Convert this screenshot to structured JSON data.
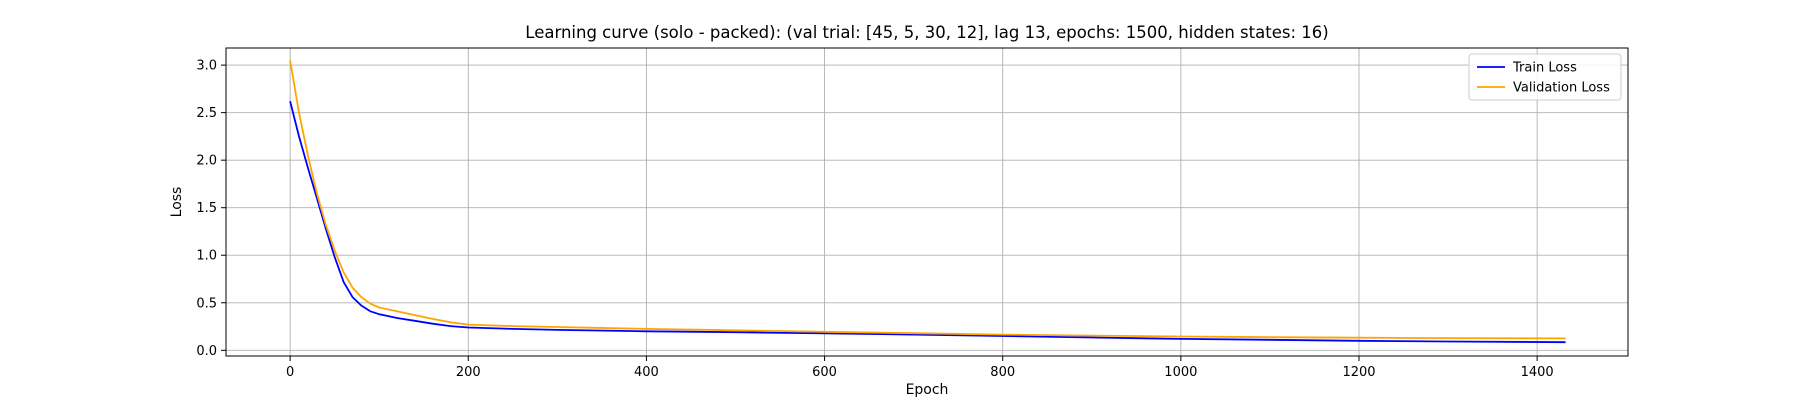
{
  "chart_data": {
    "type": "line",
    "title": "Learning curve (solo - packed): (val trial: [45, 5, 30, 12], lag 13, epochs: 1500, hidden states: 16)",
    "xlabel": "Epoch",
    "ylabel": "Loss",
    "xlim": [
      -72,
      1502
    ],
    "ylim": [
      -0.06,
      3.18
    ],
    "xticks": [
      0,
      200,
      400,
      600,
      800,
      1000,
      1200,
      1400
    ],
    "yticks": [
      0.0,
      0.5,
      1.0,
      1.5,
      2.0,
      2.5,
      3.0
    ],
    "grid": true,
    "legend_position": "top-right",
    "series": [
      {
        "name": "Train Loss",
        "color": "#0000ff",
        "x": [
          0,
          10,
          20,
          30,
          40,
          50,
          60,
          70,
          80,
          90,
          100,
          120,
          140,
          160,
          180,
          200,
          250,
          300,
          400,
          500,
          600,
          700,
          800,
          900,
          1000,
          1100,
          1200,
          1300,
          1432
        ],
        "y": [
          2.62,
          2.25,
          1.92,
          1.6,
          1.28,
          0.98,
          0.72,
          0.56,
          0.47,
          0.41,
          0.38,
          0.34,
          0.31,
          0.28,
          0.255,
          0.24,
          0.225,
          0.215,
          0.2,
          0.19,
          0.178,
          0.165,
          0.15,
          0.135,
          0.12,
          0.11,
          0.1,
          0.093,
          0.085
        ]
      },
      {
        "name": "Validation Loss",
        "color": "#ffa500",
        "x": [
          0,
          10,
          20,
          30,
          40,
          50,
          60,
          70,
          80,
          90,
          100,
          120,
          140,
          160,
          180,
          200,
          250,
          300,
          400,
          500,
          600,
          700,
          800,
          900,
          1000,
          1100,
          1200,
          1300,
          1432
        ],
        "y": [
          3.05,
          2.5,
          2.05,
          1.65,
          1.32,
          1.05,
          0.82,
          0.66,
          0.56,
          0.49,
          0.45,
          0.41,
          0.37,
          0.33,
          0.295,
          0.27,
          0.255,
          0.245,
          0.225,
          0.21,
          0.195,
          0.18,
          0.165,
          0.155,
          0.145,
          0.138,
          0.132,
          0.128,
          0.125
        ]
      }
    ]
  }
}
